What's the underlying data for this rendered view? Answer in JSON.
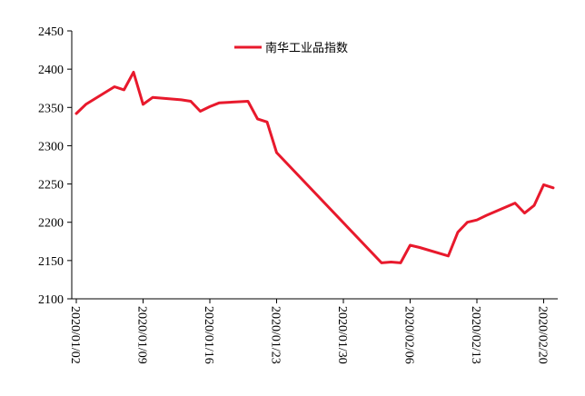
{
  "chart_data": {
    "type": "line",
    "title": "",
    "xlabel": "",
    "ylabel": "",
    "ylim": [
      2100,
      2450
    ],
    "yticks": [
      "2100",
      "2150",
      "2200",
      "2250",
      "2300",
      "2350",
      "2400",
      "2450"
    ],
    "xticks": [
      "2020/01/02",
      "2020/01/09",
      "2020/01/16",
      "2020/01/23",
      "2020/01/30",
      "2020/02/06",
      "2020/02/13",
      "2020/02/20"
    ],
    "legend_position": "top-center",
    "grid": false,
    "color": "#e8192c",
    "series": [
      {
        "name": "南华工业品指数",
        "points": [
          {
            "date": "2020/01/02",
            "value": 2342
          },
          {
            "date": "2020/01/03",
            "value": 2354
          },
          {
            "date": "2020/01/06",
            "value": 2377
          },
          {
            "date": "2020/01/07",
            "value": 2373
          },
          {
            "date": "2020/01/08",
            "value": 2396
          },
          {
            "date": "2020/01/09",
            "value": 2354
          },
          {
            "date": "2020/01/10",
            "value": 2363
          },
          {
            "date": "2020/01/13",
            "value": 2360
          },
          {
            "date": "2020/01/14",
            "value": 2358
          },
          {
            "date": "2020/01/15",
            "value": 2345
          },
          {
            "date": "2020/01/16",
            "value": 2351
          },
          {
            "date": "2020/01/17",
            "value": 2356
          },
          {
            "date": "2020/01/20",
            "value": 2358
          },
          {
            "date": "2020/01/21",
            "value": 2335
          },
          {
            "date": "2020/01/22",
            "value": 2331
          },
          {
            "date": "2020/01/23",
            "value": 2291
          },
          {
            "date": "2020/02/03",
            "value": 2147
          },
          {
            "date": "2020/02/04",
            "value": 2148
          },
          {
            "date": "2020/02/05",
            "value": 2147
          },
          {
            "date": "2020/02/06",
            "value": 2170
          },
          {
            "date": "2020/02/07",
            "value": 2167
          },
          {
            "date": "2020/02/10",
            "value": 2156
          },
          {
            "date": "2020/02/11",
            "value": 2187
          },
          {
            "date": "2020/02/12",
            "value": 2200
          },
          {
            "date": "2020/02/13",
            "value": 2203
          },
          {
            "date": "2020/02/14",
            "value": 2209
          },
          {
            "date": "2020/02/17",
            "value": 2225
          },
          {
            "date": "2020/02/18",
            "value": 2212
          },
          {
            "date": "2020/02/19",
            "value": 2222
          },
          {
            "date": "2020/02/20",
            "value": 2249
          },
          {
            "date": "2020/02/21",
            "value": 2245
          }
        ]
      }
    ]
  }
}
